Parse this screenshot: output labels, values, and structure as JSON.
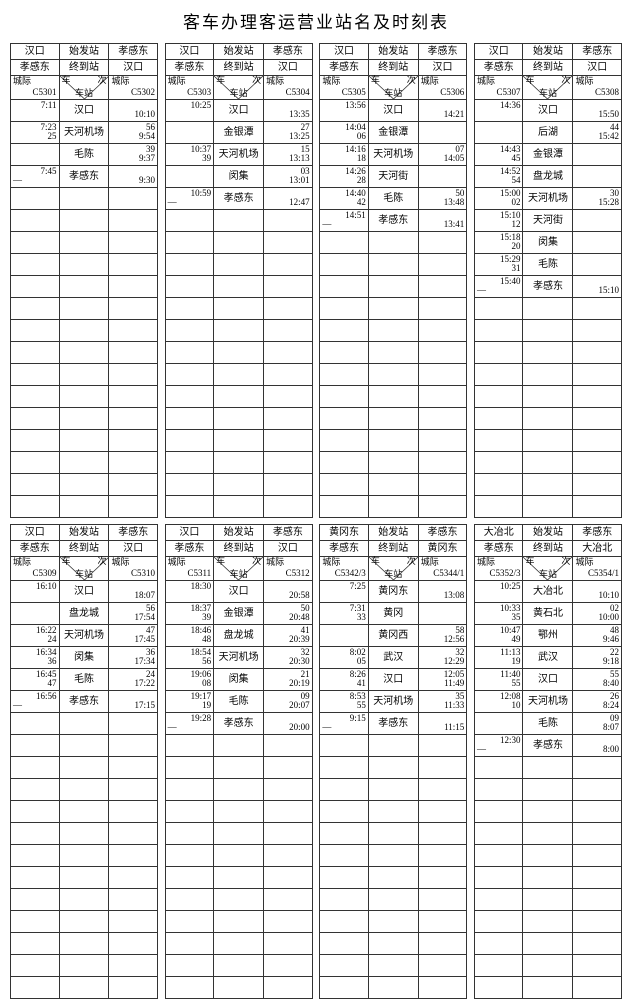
{
  "title": "客车办理客运营业站名及时刻表",
  "labels": {
    "origin": "始发站",
    "terminal": "终到站",
    "intercity": "城际",
    "train": "车",
    "num": "次",
    "station": "车站"
  },
  "emptyRowsPerPanel": 23,
  "panels": [
    {
      "head_origin": "汉口",
      "head_dest": "孝感东",
      "term_from": "孝感东",
      "term_to": "汉口",
      "code_left_top": "城际",
      "code_left_bot": "C5301",
      "code_right_top": "城际",
      "code_right_bot": "C5302",
      "rows": [
        {
          "l": [
            "7:11",
            ""
          ],
          "s": "汉口",
          "r": [
            "",
            "10:10"
          ]
        },
        {
          "l": [
            "7:23",
            "25"
          ],
          "s": "天河机场",
          "r": [
            "56",
            "9:54"
          ]
        },
        {
          "l": [
            "",
            ""
          ],
          "s": "毛陈",
          "r": [
            "39",
            "9:37"
          ]
        },
        {
          "l": [
            "7:45",
            "—"
          ],
          "s": "孝感东",
          "r": [
            "",
            "9:30"
          ]
        }
      ]
    },
    {
      "head_origin": "汉口",
      "head_dest": "孝感东",
      "term_from": "孝感东",
      "term_to": "汉口",
      "code_left_top": "城际",
      "code_left_bot": "C5303",
      "code_right_top": "城际",
      "code_right_bot": "C5304",
      "rows": [
        {
          "l": [
            "10:25",
            ""
          ],
          "s": "汉口",
          "r": [
            "",
            "13:35"
          ]
        },
        {
          "l": [
            "",
            ""
          ],
          "s": "金银潭",
          "r": [
            "27",
            "13:25"
          ]
        },
        {
          "l": [
            "10:37",
            "39"
          ],
          "s": "天河机场",
          "r": [
            "15",
            "13:13"
          ]
        },
        {
          "l": [
            "",
            ""
          ],
          "s": "闵集",
          "r": [
            "03",
            "13:01"
          ]
        },
        {
          "l": [
            "10:59",
            "—"
          ],
          "s": "孝感东",
          "r": [
            "",
            "12:47"
          ]
        }
      ]
    },
    {
      "head_origin": "汉口",
      "head_dest": "孝感东",
      "term_from": "孝感东",
      "term_to": "汉口",
      "code_left_top": "城际",
      "code_left_bot": "C5305",
      "code_right_top": "城际",
      "code_right_bot": "C5306",
      "rows": [
        {
          "l": [
            "13:56",
            ""
          ],
          "s": "汉口",
          "r": [
            "",
            "14:21"
          ]
        },
        {
          "l": [
            "14:04",
            "06"
          ],
          "s": "金银潭",
          "r": [
            "",
            ""
          ]
        },
        {
          "l": [
            "14:16",
            "18"
          ],
          "s": "天河机场",
          "r": [
            "07",
            "14:05"
          ]
        },
        {
          "l": [
            "14:26",
            "28"
          ],
          "s": "天河街",
          "r": [
            "",
            ""
          ]
        },
        {
          "l": [
            "14:40",
            "42"
          ],
          "s": "毛陈",
          "r": [
            "50",
            "13:48"
          ]
        },
        {
          "l": [
            "14:51",
            "—"
          ],
          "s": "孝感东",
          "r": [
            "",
            "13:41"
          ]
        }
      ]
    },
    {
      "head_origin": "汉口",
      "head_dest": "孝感东",
      "term_from": "孝感东",
      "term_to": "汉口",
      "code_left_top": "城际",
      "code_left_bot": "C5307",
      "code_right_top": "城际",
      "code_right_bot": "C5308",
      "rows": [
        {
          "l": [
            "14:36",
            ""
          ],
          "s": "汉口",
          "r": [
            "",
            "15:50"
          ]
        },
        {
          "l": [
            "",
            ""
          ],
          "s": "后湖",
          "r": [
            "44",
            "15:42"
          ]
        },
        {
          "l": [
            "14:43",
            "45"
          ],
          "s": "金银潭",
          "r": [
            "",
            ""
          ]
        },
        {
          "l": [
            "14:52",
            "54"
          ],
          "s": "盘龙城",
          "r": [
            "",
            ""
          ]
        },
        {
          "l": [
            "15:00",
            "02"
          ],
          "s": "天河机场",
          "r": [
            "30",
            "15:28"
          ]
        },
        {
          "l": [
            "15:10",
            "12"
          ],
          "s": "天河街",
          "r": [
            "",
            ""
          ]
        },
        {
          "l": [
            "15:18",
            "20"
          ],
          "s": "闵集",
          "r": [
            "",
            ""
          ]
        },
        {
          "l": [
            "15:29",
            "31"
          ],
          "s": "毛陈",
          "r": [
            "",
            ""
          ]
        },
        {
          "l": [
            "15:40",
            "—"
          ],
          "s": "孝感东",
          "r": [
            "",
            "15:10"
          ]
        }
      ]
    },
    {
      "head_origin": "汉口",
      "head_dest": "孝感东",
      "term_from": "孝感东",
      "term_to": "汉口",
      "code_left_top": "城际",
      "code_left_bot": "C5309",
      "code_right_top": "城际",
      "code_right_bot": "C5310",
      "rows": [
        {
          "l": [
            "16:10",
            ""
          ],
          "s": "汉口",
          "r": [
            "",
            "18:07"
          ]
        },
        {
          "l": [
            "",
            ""
          ],
          "s": "盘龙城",
          "r": [
            "56",
            "17:54"
          ]
        },
        {
          "l": [
            "16:22",
            "24"
          ],
          "s": "天河机场",
          "r": [
            "47",
            "17:45"
          ]
        },
        {
          "l": [
            "16:34",
            "36"
          ],
          "s": "闵集",
          "r": [
            "36",
            "17:34"
          ]
        },
        {
          "l": [
            "16:45",
            "47"
          ],
          "s": "毛陈",
          "r": [
            "24",
            "17:22"
          ]
        },
        {
          "l": [
            "16:56",
            "—"
          ],
          "s": "孝感东",
          "r": [
            "",
            "17:15"
          ]
        }
      ]
    },
    {
      "head_origin": "汉口",
      "head_dest": "孝感东",
      "term_from": "孝感东",
      "term_to": "汉口",
      "code_left_top": "城际",
      "code_left_bot": "C5311",
      "code_right_top": "城际",
      "code_right_bot": "C5312",
      "rows": [
        {
          "l": [
            "18:30",
            ""
          ],
          "s": "汉口",
          "r": [
            "",
            "20:58"
          ]
        },
        {
          "l": [
            "18:37",
            "39"
          ],
          "s": "金银潭",
          "r": [
            "50",
            "20:48"
          ]
        },
        {
          "l": [
            "18:46",
            "48"
          ],
          "s": "盘龙城",
          "r": [
            "41",
            "20:39"
          ]
        },
        {
          "l": [
            "18:54",
            "56"
          ],
          "s": "天河机场",
          "r": [
            "32",
            "20:30"
          ]
        },
        {
          "l": [
            "19:06",
            "08"
          ],
          "s": "闵集",
          "r": [
            "21",
            "20:19"
          ]
        },
        {
          "l": [
            "19:17",
            "19"
          ],
          "s": "毛陈",
          "r": [
            "09",
            "20:07"
          ]
        },
        {
          "l": [
            "19:28",
            "—"
          ],
          "s": "孝感东",
          "r": [
            "",
            "20:00"
          ]
        }
      ]
    },
    {
      "head_origin": "黄冈东",
      "head_dest": "孝感东",
      "term_from": "孝感东",
      "term_to": "黄冈东",
      "code_left_top": "城际",
      "code_left_bot": "C5342/3",
      "code_right_top": "城际",
      "code_right_bot": "C5344/1",
      "rows": [
        {
          "l": [
            "7:25",
            ""
          ],
          "s": "黄冈东",
          "r": [
            "",
            "13:08"
          ]
        },
        {
          "l": [
            "7:31",
            "33"
          ],
          "s": "黄冈",
          "r": [
            "",
            ""
          ]
        },
        {
          "l": [
            "",
            ""
          ],
          "s": "黄冈西",
          "r": [
            "58",
            "12:56"
          ]
        },
        {
          "l": [
            "8:02",
            "05"
          ],
          "s": "武汉",
          "r": [
            "32",
            "12:29"
          ]
        },
        {
          "l": [
            "8:26",
            "41"
          ],
          "s": "汉口",
          "r": [
            "12:05",
            "11:49"
          ]
        },
        {
          "l": [
            "8:53",
            "55"
          ],
          "s": "天河机场",
          "r": [
            "35",
            "11:33"
          ]
        },
        {
          "l": [
            "9:15",
            "—"
          ],
          "s": "孝感东",
          "r": [
            "",
            "11:15"
          ]
        }
      ]
    },
    {
      "head_origin": "大冶北",
      "head_dest": "孝感东",
      "term_from": "孝感东",
      "term_to": "大冶北",
      "code_left_top": "城际",
      "code_left_bot": "C5352/3",
      "code_right_top": "城际",
      "code_right_bot": "C5354/1",
      "rows": [
        {
          "l": [
            "10:25",
            ""
          ],
          "s": "大冶北",
          "r": [
            "",
            "10:10"
          ]
        },
        {
          "l": [
            "10:33",
            "35"
          ],
          "s": "黄石北",
          "r": [
            "02",
            "10:00"
          ]
        },
        {
          "l": [
            "10:47",
            "49"
          ],
          "s": "鄂州",
          "r": [
            "48",
            "9:46"
          ]
        },
        {
          "l": [
            "11:13",
            "19"
          ],
          "s": "武汉",
          "r": [
            "22",
            "9:18"
          ]
        },
        {
          "l": [
            "11:40",
            "55"
          ],
          "s": "汉口",
          "r": [
            "55",
            "8:40"
          ]
        },
        {
          "l": [
            "12:08",
            "10"
          ],
          "s": "天河机场",
          "r": [
            "26",
            "8:24"
          ]
        },
        {
          "l": [
            "",
            ""
          ],
          "s": "毛陈",
          "r": [
            "09",
            "8:07"
          ]
        },
        {
          "l": [
            "12:30",
            "—"
          ],
          "s": "孝感东",
          "r": [
            "",
            "8:00"
          ]
        }
      ]
    }
  ]
}
